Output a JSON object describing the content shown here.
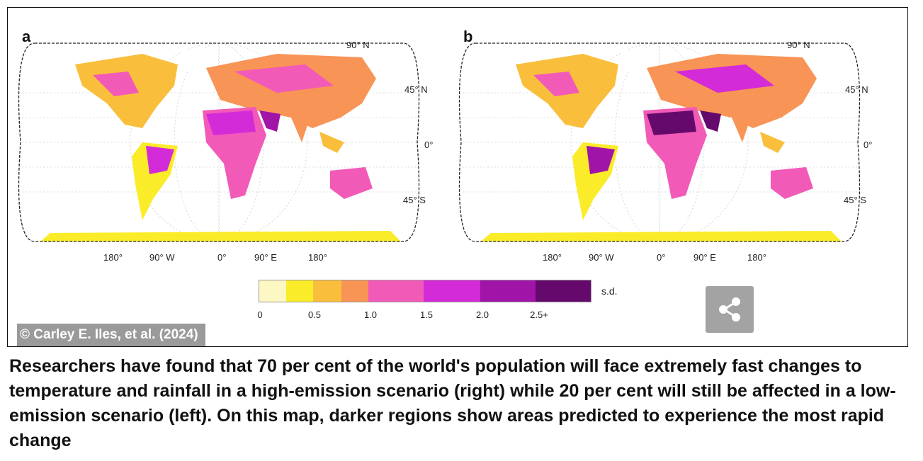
{
  "panels": [
    {
      "letter": "a",
      "lat_labels": [
        "90° N",
        "45° N",
        "0°",
        "45° S"
      ],
      "lon_labels": [
        "180°",
        "90° W",
        "0°",
        "90° E",
        "180°"
      ]
    },
    {
      "letter": "b",
      "lat_labels": [
        "90° N",
        "45° N",
        "0°",
        "45° S"
      ],
      "lon_labels": [
        "180°",
        "90° W",
        "0°",
        "90° E",
        "180°"
      ]
    }
  ],
  "legend": {
    "unit": "s.d.",
    "ticks": [
      "0",
      "0.5",
      "1.0",
      "1.5",
      "2.0",
      "2.5+"
    ],
    "colors": [
      "#fdf7c4",
      "#fbec2a",
      "#f9bf3c",
      "#f79456",
      "#f25ab8",
      "#d42bd8",
      "#a014a8",
      "#650a6c"
    ]
  },
  "credit": "© Carley E. Iles, et al. (2024)",
  "share_icon": "share-icon",
  "caption": "Researchers have found that 70 per cent of the world's population will face extremely fast changes to temperature and rainfall in a high-emission scenario (right) while 20 per cent will still be affected in a low-emission scenario (left). On this map, darker regions show areas predicted to experience the most rapid change"
}
